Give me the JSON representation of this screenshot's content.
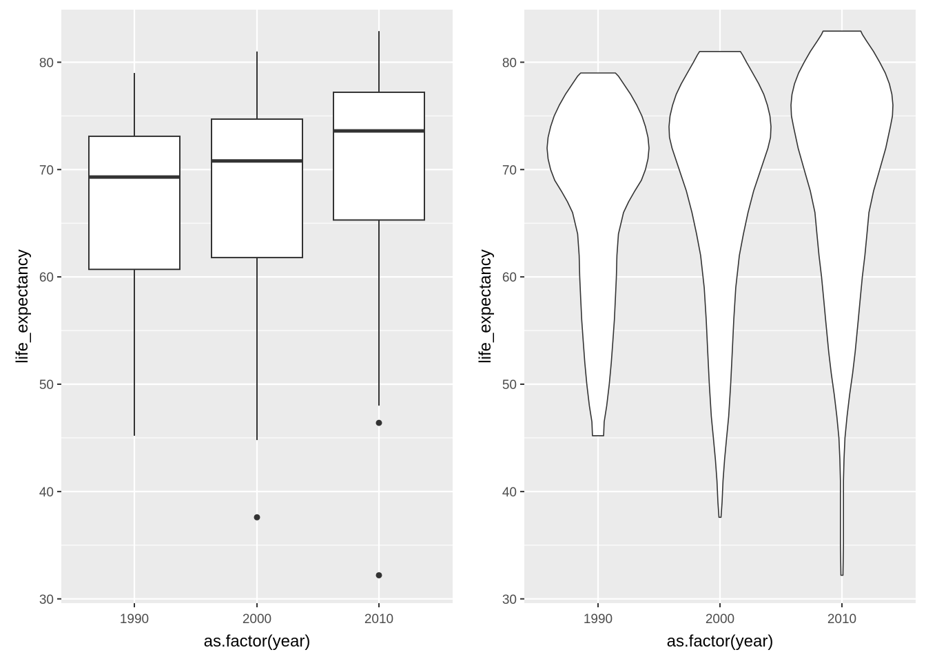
{
  "chart_data": [
    {
      "type": "box",
      "xlabel": "as.factor(year)",
      "ylabel": "life_expectancy",
      "categories": [
        "1990",
        "2000",
        "2010"
      ],
      "ylim": [
        29.6,
        84.9
      ],
      "yticks": [
        30,
        40,
        50,
        60,
        70,
        80
      ],
      "grid": true,
      "boxes": [
        {
          "category": "1990",
          "whisker_low": 45.2,
          "q1": 60.7,
          "median": 69.3,
          "q3": 73.1,
          "whisker_high": 79.0,
          "outliers": []
        },
        {
          "category": "2000",
          "whisker_low": 44.8,
          "q1": 61.8,
          "median": 70.8,
          "q3": 74.7,
          "whisker_high": 81.0,
          "outliers": [
            37.6
          ]
        },
        {
          "category": "2010",
          "whisker_low": 48.0,
          "q1": 65.3,
          "median": 73.6,
          "q3": 77.2,
          "whisker_high": 82.9,
          "outliers": [
            46.4,
            32.2
          ]
        }
      ]
    },
    {
      "type": "violin",
      "xlabel": "as.factor(year)",
      "ylabel": "life_expectancy",
      "categories": [
        "1990",
        "2000",
        "2010"
      ],
      "ylim": [
        29.6,
        84.9
      ],
      "yticks": [
        30,
        40,
        50,
        60,
        70,
        80
      ],
      "grid": true,
      "violins": [
        {
          "category": "1990",
          "ymin": 45.2,
          "ymax": 79.0,
          "profile": [
            [
              45.2,
              0.11
            ],
            [
              46.5,
              0.12
            ],
            [
              48,
              0.17
            ],
            [
              50,
              0.22
            ],
            [
              52,
              0.26
            ],
            [
              54,
              0.29
            ],
            [
              56,
              0.32
            ],
            [
              58,
              0.34
            ],
            [
              60,
              0.36
            ],
            [
              62,
              0.37
            ],
            [
              64,
              0.4
            ],
            [
              66,
              0.5
            ],
            [
              67,
              0.6
            ],
            [
              68,
              0.72
            ],
            [
              69,
              0.85
            ],
            [
              70,
              0.93
            ],
            [
              71,
              0.98
            ],
            [
              72,
              1.0
            ],
            [
              73,
              0.98
            ],
            [
              74,
              0.93
            ],
            [
              75,
              0.86
            ],
            [
              76,
              0.76
            ],
            [
              77,
              0.64
            ],
            [
              78,
              0.5
            ],
            [
              78.7,
              0.4
            ],
            [
              79.0,
              0.34
            ]
          ]
        },
        {
          "category": "2000",
          "ymin": 37.6,
          "ymax": 81.0,
          "profile": [
            [
              37.6,
              0.02
            ],
            [
              39,
              0.04
            ],
            [
              41,
              0.06
            ],
            [
              43,
              0.09
            ],
            [
              45,
              0.13
            ],
            [
              47,
              0.17
            ],
            [
              50,
              0.21
            ],
            [
              53,
              0.24
            ],
            [
              56,
              0.27
            ],
            [
              59,
              0.31
            ],
            [
              62,
              0.38
            ],
            [
              64,
              0.46
            ],
            [
              66,
              0.55
            ],
            [
              68,
              0.66
            ],
            [
              70,
              0.8
            ],
            [
              72,
              0.94
            ],
            [
              73,
              0.99
            ],
            [
              74,
              1.0
            ],
            [
              75,
              0.98
            ],
            [
              76,
              0.93
            ],
            [
              77,
              0.86
            ],
            [
              78,
              0.76
            ],
            [
              79,
              0.64
            ],
            [
              80,
              0.52
            ],
            [
              80.7,
              0.44
            ],
            [
              81.0,
              0.4
            ]
          ]
        },
        {
          "category": "2010",
          "ymin": 32.2,
          "ymax": 82.9,
          "profile": [
            [
              32.2,
              0.02
            ],
            [
              35,
              0.03
            ],
            [
              38,
              0.03
            ],
            [
              41,
              0.03
            ],
            [
              43,
              0.04
            ],
            [
              45,
              0.06
            ],
            [
              47,
              0.1
            ],
            [
              49,
              0.15
            ],
            [
              51,
              0.21
            ],
            [
              53,
              0.26
            ],
            [
              56,
              0.32
            ],
            [
              58,
              0.36
            ],
            [
              60,
              0.4
            ],
            [
              62,
              0.45
            ],
            [
              64,
              0.49
            ],
            [
              66,
              0.53
            ],
            [
              68,
              0.62
            ],
            [
              70,
              0.74
            ],
            [
              72,
              0.86
            ],
            [
              74,
              0.95
            ],
            [
              75,
              0.99
            ],
            [
              76,
              1.0
            ],
            [
              77,
              0.98
            ],
            [
              78,
              0.93
            ],
            [
              79,
              0.85
            ],
            [
              80,
              0.74
            ],
            [
              81,
              0.62
            ],
            [
              82,
              0.48
            ],
            [
              82.6,
              0.4
            ],
            [
              82.9,
              0.37
            ]
          ]
        }
      ]
    }
  ]
}
